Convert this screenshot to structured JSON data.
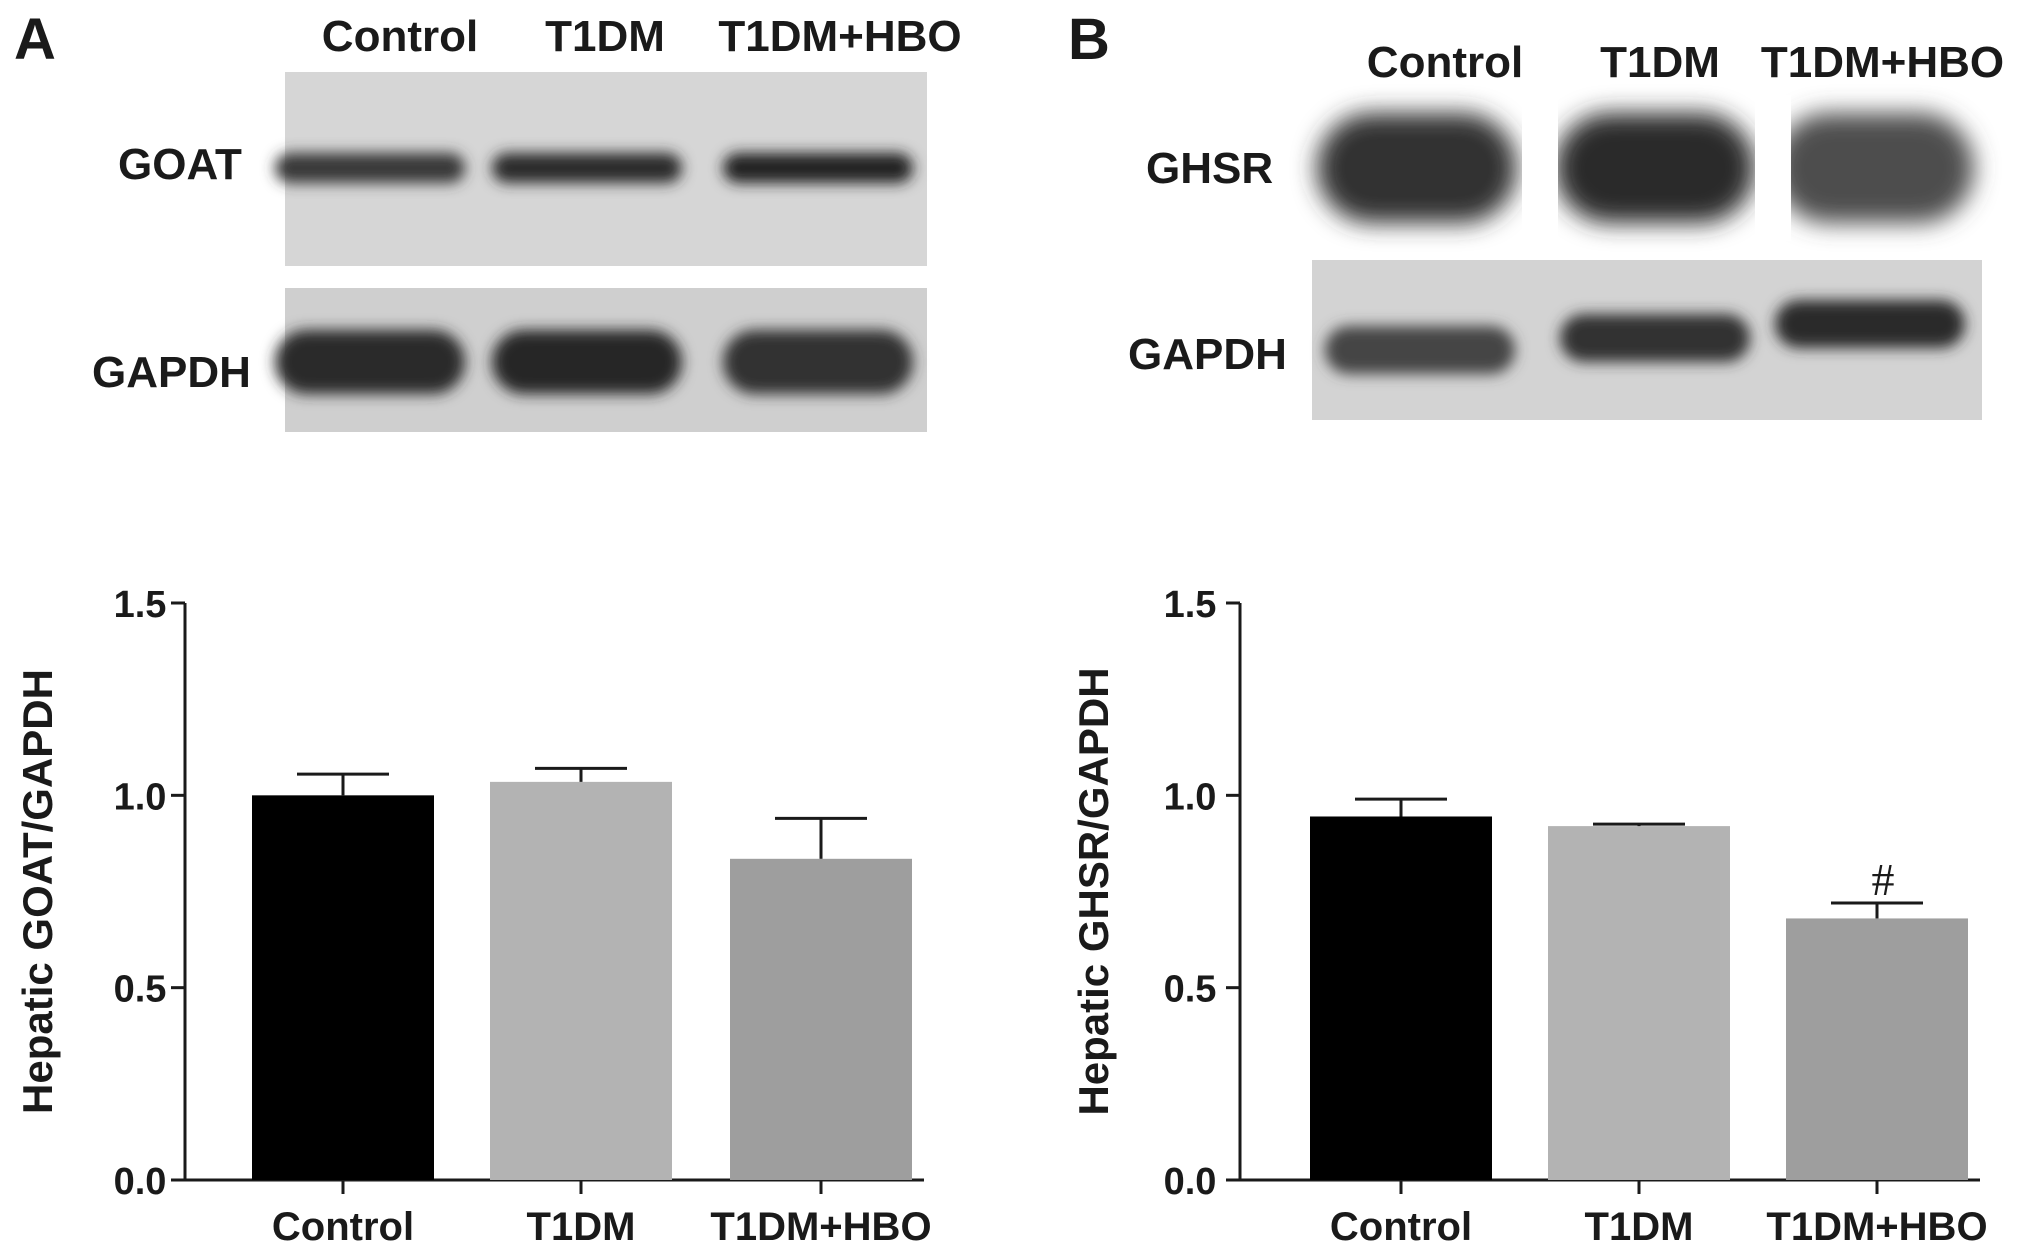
{
  "panels": [
    {
      "letter": "A",
      "blot": {
        "lanes": [
          "Control",
          "T1DM",
          "T1DM+HBO"
        ],
        "rows": [
          {
            "protein": "GOAT",
            "intensity": [
              0.82,
              0.9,
              0.95
            ]
          },
          {
            "protein": "GAPDH",
            "intensity": [
              0.9,
              0.92,
              0.85
            ]
          }
        ]
      }
    },
    {
      "letter": "B",
      "blot": {
        "lanes": [
          "Control",
          "T1DM",
          "T1DM+HBO"
        ],
        "rows": [
          {
            "protein": "GHSR",
            "intensity": [
              0.85,
              0.9,
              0.7
            ]
          },
          {
            "protein": "GAPDH",
            "intensity": [
              0.75,
              0.85,
              0.9
            ]
          }
        ]
      }
    }
  ],
  "chart_data": [
    {
      "type": "bar",
      "categories": [
        "Control",
        "T1DM",
        "T1DM+HBO"
      ],
      "values": [
        1.0,
        1.035,
        0.835
      ],
      "errors": [
        0.055,
        0.035,
        0.105
      ],
      "annotations": [
        "",
        "",
        ""
      ],
      "colors": [
        "#000000",
        "#b3b3b3",
        "#9e9e9e"
      ],
      "ylabel": "Hepatic GOAT/GAPDH",
      "ylim": [
        0,
        1.5
      ],
      "yticks": [
        "0.0",
        "0.5",
        "1.0",
        "1.5"
      ],
      "grid": false
    },
    {
      "type": "bar",
      "categories": [
        "Control",
        "T1DM",
        "T1DM+HBO"
      ],
      "values": [
        0.945,
        0.92,
        0.68
      ],
      "errors": [
        0.045,
        0.005,
        0.04
      ],
      "annotations": [
        "",
        "",
        "#"
      ],
      "colors": [
        "#000000",
        "#b3b3b3",
        "#9e9e9e"
      ],
      "ylabel": "Hepatic GHSR/GAPDH",
      "ylim": [
        0,
        1.5
      ],
      "yticks": [
        "0.0",
        "0.5",
        "1.0",
        "1.5"
      ],
      "grid": false
    }
  ]
}
